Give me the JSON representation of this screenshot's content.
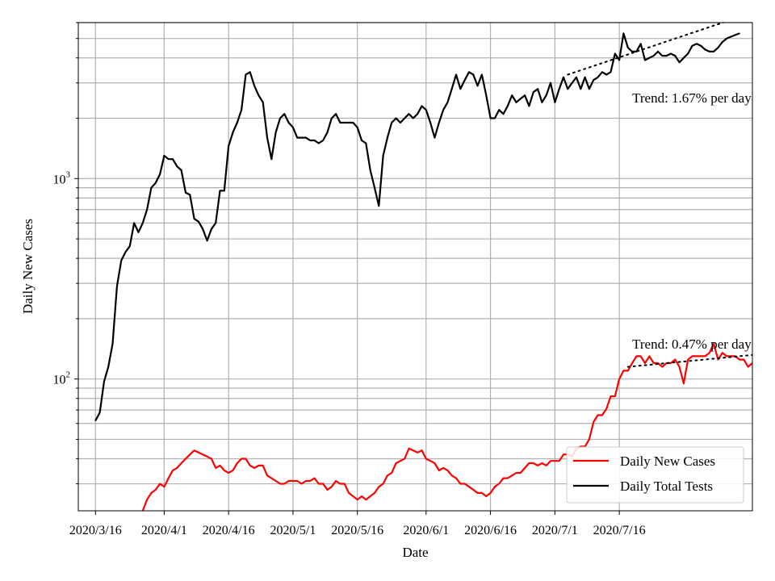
{
  "chart_data": {
    "type": "line",
    "yscale": "log",
    "title": "",
    "xlabel": "Date",
    "ylabel": "Daily New Cases",
    "ylim": [
      22,
      6000
    ],
    "xlim": [
      -4,
      153
    ],
    "grid": true,
    "legend_position": "lower-right",
    "x_ticks": [
      {
        "day": 0,
        "label": "2020/3/16"
      },
      {
        "day": 16,
        "label": "2020/4/1"
      },
      {
        "day": 31,
        "label": "2020/4/16"
      },
      {
        "day": 46,
        "label": "2020/5/1"
      },
      {
        "day": 61,
        "label": "2020/5/16"
      },
      {
        "day": 77,
        "label": "2020/6/1"
      },
      {
        "day": 92,
        "label": "2020/6/16"
      },
      {
        "day": 107,
        "label": "2020/7/1"
      },
      {
        "day": 122,
        "label": "2020/7/16"
      }
    ],
    "y_ticks": [
      {
        "value": 100,
        "label": "10",
        "exp": "2"
      },
      {
        "value": 1000,
        "label": "10",
        "exp": "3"
      }
    ],
    "series": [
      {
        "name": "Daily New Cases",
        "color": "#ff0000",
        "start_day": 10,
        "values": [
          20,
          22,
          25,
          27,
          28,
          30,
          29,
          32,
          35,
          36,
          38,
          40,
          42,
          44,
          43,
          42,
          41,
          40,
          36,
          37,
          35,
          34,
          35,
          38,
          40,
          40,
          37,
          36,
          37,
          37,
          33,
          32,
          31,
          30,
          30,
          31,
          31,
          31,
          30,
          31,
          31,
          32,
          30,
          30,
          28,
          29,
          31,
          30,
          30,
          27,
          26,
          25,
          26,
          25,
          26,
          27,
          29,
          30,
          33,
          34,
          38,
          39,
          40,
          45,
          44,
          43,
          44,
          40,
          39,
          38,
          35,
          36,
          35,
          33,
          32,
          30,
          30,
          29,
          28,
          27,
          27,
          26,
          27,
          29,
          30,
          32,
          32,
          33,
          34,
          34,
          36,
          38,
          38,
          37,
          38,
          37,
          39,
          39,
          39,
          42,
          42,
          41,
          45,
          46,
          46,
          50,
          61,
          66,
          66,
          71,
          82,
          82,
          100,
          110,
          110,
          120,
          130,
          130,
          120,
          130,
          120,
          120,
          115,
          120,
          120,
          125,
          115,
          95,
          125,
          130,
          130,
          130,
          130,
          135,
          150,
          125,
          135,
          130,
          130,
          130,
          125,
          125,
          115,
          120,
          120,
          115,
          120,
          120,
          125,
          120,
          125,
          120,
          125,
          125,
          125,
          120
        ]
      },
      {
        "name": "Daily Total Tests",
        "color": "#000000",
        "start_day": 0,
        "values": [
          62,
          68,
          97,
          115,
          150,
          290,
          390,
          430,
          460,
          600,
          540,
          600,
          700,
          900,
          950,
          1050,
          1300,
          1250,
          1250,
          1150,
          1100,
          850,
          830,
          630,
          610,
          560,
          490,
          560,
          600,
          870,
          870,
          1450,
          1700,
          1900,
          2200,
          3300,
          3400,
          2900,
          2600,
          2400,
          1600,
          1250,
          1700,
          2000,
          2100,
          1900,
          1800,
          1600,
          1600,
          1600,
          1550,
          1550,
          1500,
          1550,
          1700,
          2000,
          2100,
          1900,
          1900,
          1900,
          1900,
          1800,
          1550,
          1500,
          1100,
          900,
          730,
          1300,
          1600,
          1900,
          2000,
          1900,
          2000,
          2100,
          2000,
          2100,
          2300,
          2200,
          1900,
          1600,
          1900,
          2200,
          2400,
          2800,
          3300,
          2800,
          3100,
          3400,
          3300,
          2900,
          3300,
          2600,
          2000,
          2000,
          2200,
          2100,
          2300,
          2600,
          2400,
          2500,
          2600,
          2300,
          2700,
          2800,
          2400,
          2600,
          3000,
          2400,
          2800,
          3200,
          2800,
          3000,
          3200,
          2800,
          3200,
          2800,
          3100,
          3200,
          3400,
          3300,
          3400,
          4200,
          3900,
          5300,
          4500,
          4300,
          4300,
          4700,
          3900,
          4000,
          4100,
          4300,
          4100,
          4100,
          4200,
          4100,
          3800,
          4000,
          4200,
          4600,
          4700,
          4600,
          4400,
          4300,
          4300,
          4500,
          4800,
          5000,
          5100,
          5200,
          5300
        ]
      }
    ],
    "trend_lines": [
      {
        "series": "Daily Total Tests",
        "rate_per_day": 0.0167,
        "start_day": 110,
        "end_day": 153,
        "start_value": 3300,
        "label": "Trend: 1.67% per day"
      },
      {
        "series": "Daily New Cases",
        "rate_per_day": 0.0047,
        "start_day": 124,
        "end_day": 153,
        "start_value": 115,
        "label": "Trend: 0.47% per day"
      }
    ],
    "annotations": [
      {
        "text": "Trend: 1.67% per day",
        "anchor_day": 125,
        "anchor_value": 2400
      },
      {
        "text": "Trend: 0.47% per day",
        "anchor_day": 125,
        "anchor_value": 142
      }
    ]
  }
}
